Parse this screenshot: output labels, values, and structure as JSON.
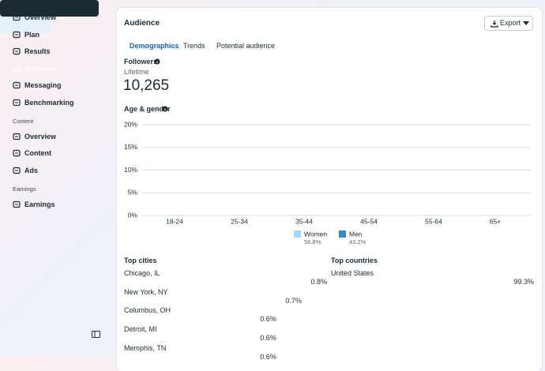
{
  "sidebar": {
    "items": [
      "Overview",
      "Plan",
      "Results",
      "Audience",
      "Messaging",
      "Benchmarking"
    ],
    "sections": [
      {
        "title": "Content",
        "items": [
          "Overview",
          "Content",
          "Ads"
        ]
      },
      {
        "title": "Earnings",
        "items": [
          "Earnings"
        ]
      }
    ]
  },
  "header": {
    "title": "Audience",
    "export": "Export"
  },
  "tabs": [
    "Demographics",
    "Trends",
    "Potential audience"
  ],
  "followers": {
    "title": "Followers",
    "period": "Lifetime",
    "value": "10,265"
  },
  "chart_data": {
    "type": "bar",
    "title": "Age & gender",
    "categories": [
      "18-24",
      "25-34",
      "35-44",
      "45-54",
      "55-64",
      "65+"
    ],
    "ylim": [
      0,
      20
    ],
    "yticks": [
      {
        "value": 0,
        "label": "0%"
      },
      {
        "value": 5,
        "label": "5%"
      },
      {
        "value": 10,
        "label": "10%"
      },
      {
        "value": 15,
        "label": "15%"
      },
      {
        "value": 20,
        "label": "20%"
      }
    ],
    "grid": true,
    "series": [
      {
        "name": "Women",
        "color": "#a5d8f7",
        "share": 56.8,
        "share_label": "56.8%"
      },
      {
        "name": "Men",
        "color": "#2f8bc9",
        "share": 43.2,
        "share_label": "43.2%"
      }
    ]
  },
  "top_cities": {
    "title": "Top cities",
    "rows": [
      {
        "name": "Chicago, IL",
        "value": 0.8,
        "label": "0.8%"
      },
      {
        "name": "New York, NY",
        "value": 0.7,
        "label": "0.7%"
      },
      {
        "name": "Columbus, OH",
        "value": 0.6,
        "label": "0.6%"
      },
      {
        "name": "Detroit, MI",
        "value": 0.6,
        "label": "0.6%"
      },
      {
        "name": "Memphis, TN",
        "value": 0.6,
        "label": "0.6%"
      }
    ]
  },
  "top_countries": {
    "title": "Top countries",
    "rows": [
      {
        "name": "United States",
        "value": 99.3,
        "label": "99.3%"
      }
    ]
  }
}
